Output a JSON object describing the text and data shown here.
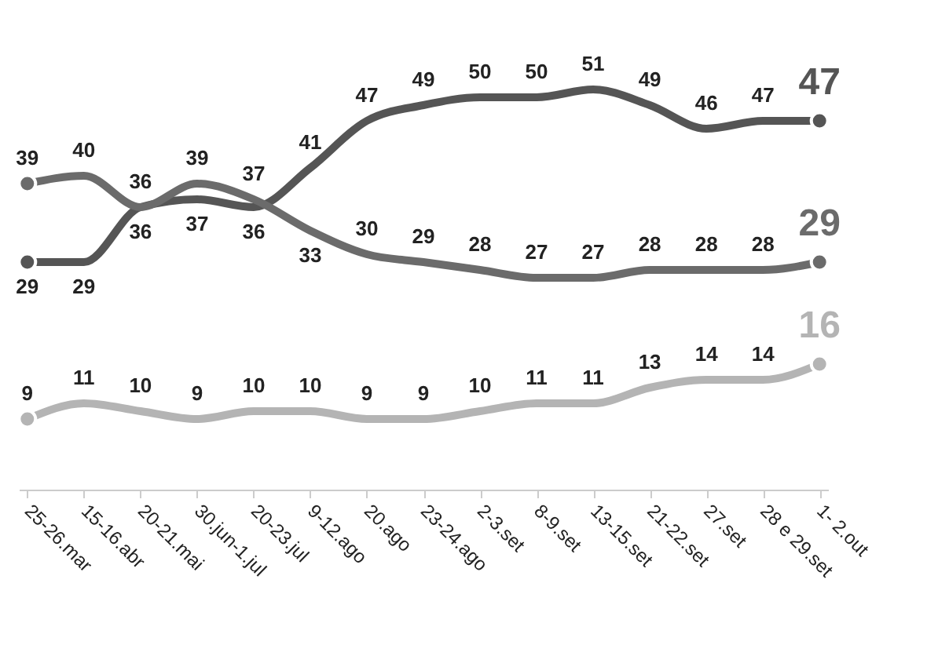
{
  "chart_data": {
    "type": "line",
    "categories": [
      "25-26.mar",
      "15-16.abr",
      "20-21.mai",
      "30.jun-1.jul",
      "20-23.jul",
      "9-12.ago",
      "20.ago",
      "23-24.ago",
      "2-3.set",
      "8-9.set",
      "13-15.set",
      "21-22.set",
      "27.set",
      "28 e 29.set",
      "1- 2.out"
    ],
    "series": [
      {
        "color": "#555555",
        "values": [
          29,
          29,
          36,
          37,
          36,
          41,
          47,
          49,
          50,
          50,
          51,
          49,
          46,
          47,
          47
        ]
      },
      {
        "color": "#6b6b6b",
        "values": [
          39,
          40,
          36,
          39,
          37,
          33,
          30,
          29,
          28,
          27,
          27,
          28,
          28,
          28,
          29
        ]
      },
      {
        "color": "#b4b4b4",
        "values": [
          9,
          11,
          10,
          9,
          10,
          10,
          9,
          9,
          10,
          11,
          11,
          13,
          14,
          14,
          16
        ]
      }
    ],
    "data_labels": true,
    "line_style": "solid"
  }
}
